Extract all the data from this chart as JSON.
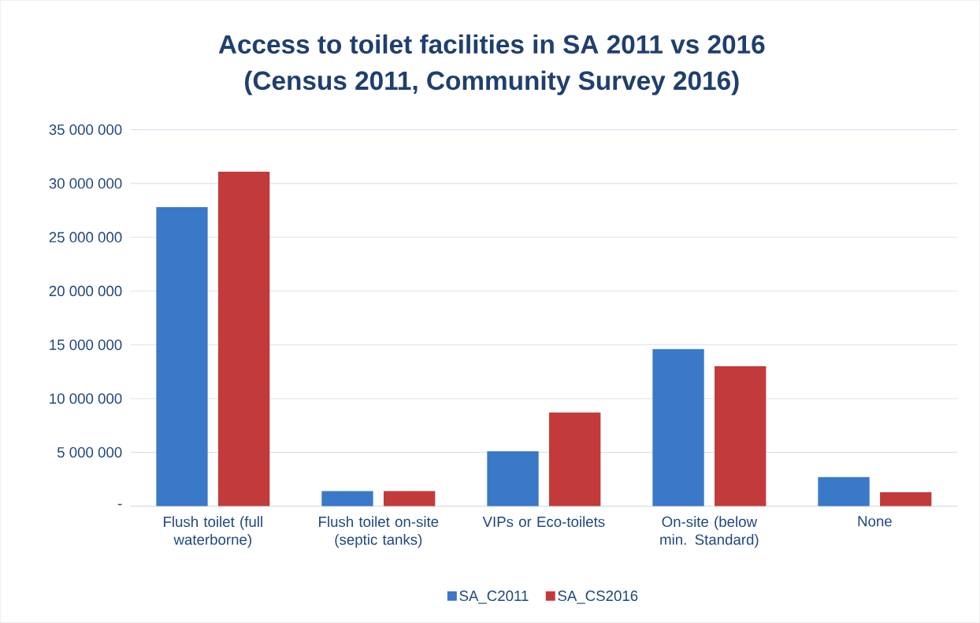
{
  "chart_data": {
    "type": "bar",
    "title": "Access to toilet facilities in SA 2011 vs 2016",
    "subtitle": "(Census 2011, Community Survey 2016)",
    "categories": [
      "Flush toilet (full waterborne)",
      "Flush toilet on-site (septic tanks)",
      "VIPs or Eco-toilets",
      "On-site (below min. Standard)",
      "None"
    ],
    "series": [
      {
        "name": "SA_C2011",
        "color": "#3a78c8",
        "values": [
          27800000,
          1400000,
          5100000,
          14600000,
          2700000
        ]
      },
      {
        "name": "SA_CS2016",
        "color": "#c23a3a",
        "values": [
          31100000,
          1400000,
          8700000,
          13000000,
          1300000
        ]
      }
    ],
    "ylim": [
      0,
      35000000
    ],
    "yticks": [
      {
        "value": 0,
        "label": "-"
      },
      {
        "value": 5000000,
        "label": "5 000 000"
      },
      {
        "value": 10000000,
        "label": "10 000 000"
      },
      {
        "value": 15000000,
        "label": "15 000 000"
      },
      {
        "value": 20000000,
        "label": "20 000 000"
      },
      {
        "value": 25000000,
        "label": "25 000 000"
      },
      {
        "value": 30000000,
        "label": "30 000 000"
      },
      {
        "value": 35000000,
        "label": "35 000 000"
      }
    ],
    "grid": "y",
    "legend": "bottom"
  }
}
